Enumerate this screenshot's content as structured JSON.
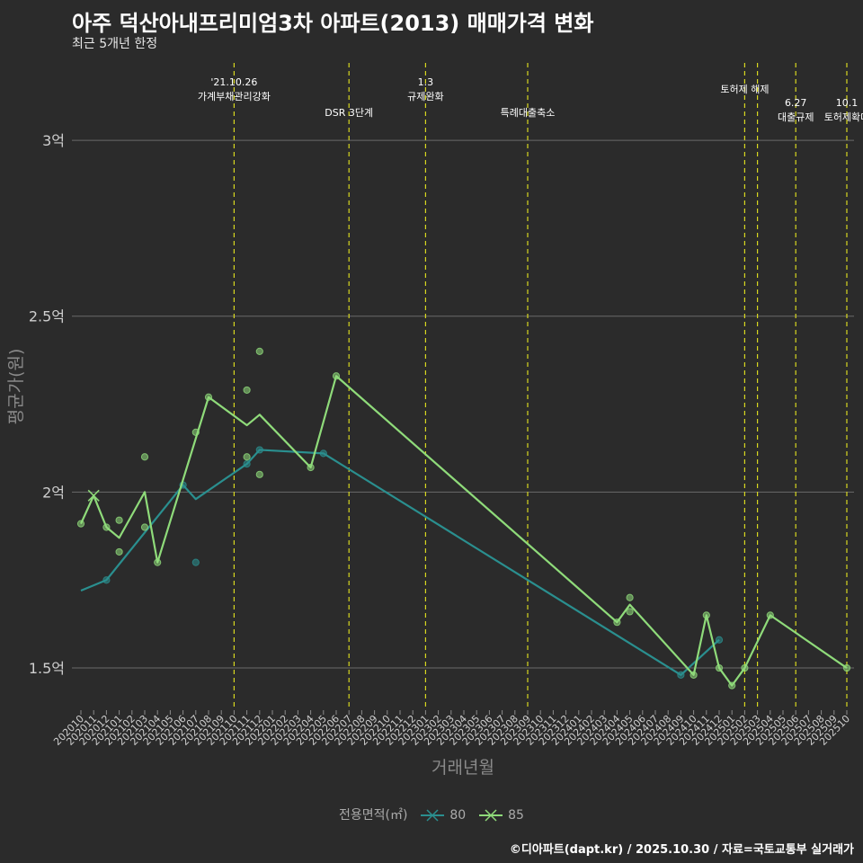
{
  "title": "아주 덕산아내프리미엄3차 아파트(2013) 매매가격 변화",
  "subtitle": "최근 5개년 한정",
  "credit": "©디아파트(dapt.kr) / 2025.10.30 / 자료=국토교통부 실거래가",
  "legend": {
    "title": "전용면적(㎡)",
    "items": [
      {
        "label": "80",
        "color": "#2a8f8f"
      },
      {
        "label": "85",
        "color": "#8fdb7a"
      }
    ]
  },
  "chart_data": {
    "type": "line",
    "xlabel": "거래년월",
    "ylabel": "평균가(원)",
    "ylim": [
      1.38,
      3.22
    ],
    "yticks": [
      {
        "value": 1.5,
        "label": "1.5억"
      },
      {
        "value": 2.0,
        "label": "2억"
      },
      {
        "value": 2.5,
        "label": "2.5억"
      },
      {
        "value": 3.0,
        "label": "3억"
      }
    ],
    "categories": [
      "202010",
      "202011",
      "202012",
      "202101",
      "202102",
      "202103",
      "202104",
      "202105",
      "202106",
      "202107",
      "202108",
      "202109",
      "202110",
      "202111",
      "202112",
      "202201",
      "202202",
      "202203",
      "202204",
      "202205",
      "202206",
      "202207",
      "202208",
      "202209",
      "202210",
      "202211",
      "202212",
      "202301",
      "202302",
      "202303",
      "202304",
      "202305",
      "202306",
      "202307",
      "202308",
      "202309",
      "202310",
      "202311",
      "202312",
      "202401",
      "202402",
      "202403",
      "202404",
      "202405",
      "202406",
      "202407",
      "202408",
      "202409",
      "202410",
      "202411",
      "202412",
      "202501",
      "202502",
      "202503",
      "202504",
      "202505",
      "202506",
      "202507",
      "202508",
      "202509",
      "202510"
    ],
    "series": [
      {
        "name": "80",
        "color": "#2a8f8f",
        "line": [
          [
            "202010",
            1.72
          ],
          [
            "202012",
            1.75
          ],
          [
            "202106",
            2.02
          ],
          [
            "202107",
            1.98
          ],
          [
            "202111",
            2.08
          ],
          [
            "202112",
            2.12
          ],
          [
            "202205",
            2.11
          ],
          [
            "202409",
            1.48
          ],
          [
            "202412",
            1.58
          ]
        ],
        "points": [
          [
            "202012",
            1.75
          ],
          [
            "202106",
            2.02
          ],
          [
            "202107",
            1.8
          ],
          [
            "202111",
            2.08
          ],
          [
            "202112",
            2.12
          ],
          [
            "202205",
            2.11
          ],
          [
            "202409",
            1.48
          ],
          [
            "202412",
            1.58
          ]
        ]
      },
      {
        "name": "85",
        "color": "#8fdb7a",
        "line": [
          [
            "202010",
            1.91
          ],
          [
            "202011",
            1.99
          ],
          [
            "202012",
            1.9
          ],
          [
            "202101",
            1.87
          ],
          [
            "202103",
            2.0
          ],
          [
            "202104",
            1.8
          ],
          [
            "202108",
            2.27
          ],
          [
            "202111",
            2.19
          ],
          [
            "202112",
            2.22
          ],
          [
            "202204",
            2.07
          ],
          [
            "202206",
            2.33
          ],
          [
            "202404",
            1.63
          ],
          [
            "202405",
            1.68
          ],
          [
            "202410",
            1.48
          ],
          [
            "202411",
            1.65
          ],
          [
            "202412",
            1.5
          ],
          [
            "202501",
            1.45
          ],
          [
            "202502",
            1.5
          ],
          [
            "202504",
            1.65
          ],
          [
            "202510",
            1.5
          ]
        ],
        "points": [
          [
            "202010",
            1.91
          ],
          [
            "202012",
            1.9
          ],
          [
            "202101",
            1.92
          ],
          [
            "202101",
            1.83
          ],
          [
            "202103",
            2.1
          ],
          [
            "202103",
            1.9
          ],
          [
            "202104",
            1.8
          ],
          [
            "202107",
            2.17
          ],
          [
            "202108",
            2.27
          ],
          [
            "202111",
            2.29
          ],
          [
            "202111",
            2.1
          ],
          [
            "202112",
            2.4
          ],
          [
            "202112",
            2.05
          ],
          [
            "202204",
            2.07
          ],
          [
            "202206",
            2.33
          ],
          [
            "202404",
            1.63
          ],
          [
            "202405",
            1.7
          ],
          [
            "202405",
            1.66
          ],
          [
            "202410",
            1.48
          ],
          [
            "202411",
            1.65
          ],
          [
            "202412",
            1.5
          ],
          [
            "202501",
            1.45
          ],
          [
            "202502",
            1.5
          ],
          [
            "202504",
            1.65
          ],
          [
            "202510",
            1.5
          ]
        ]
      }
    ],
    "events": [
      {
        "x": "202110",
        "lines": [
          "'21.10.26",
          "가계부채관리강화"
        ],
        "row": "top"
      },
      {
        "x": "202207",
        "lines": [
          "DSR 3단계"
        ],
        "row": "low"
      },
      {
        "x": "202301",
        "lines": [
          "1.3",
          "규제완화"
        ],
        "row": "top"
      },
      {
        "x": "202309",
        "lines": [
          "특례대출축소"
        ],
        "row": "low"
      },
      {
        "x": "202502",
        "lines": [
          "토허제 해제"
        ],
        "row": "mid"
      },
      {
        "x": "202503",
        "lines": [],
        "row": "mid"
      },
      {
        "x": "202506",
        "lines": [
          "6.27",
          "대출규제"
        ],
        "row": "lower"
      },
      {
        "x": "202510",
        "lines": [
          "10.1",
          "토허제확대"
        ],
        "row": "lower"
      }
    ]
  }
}
